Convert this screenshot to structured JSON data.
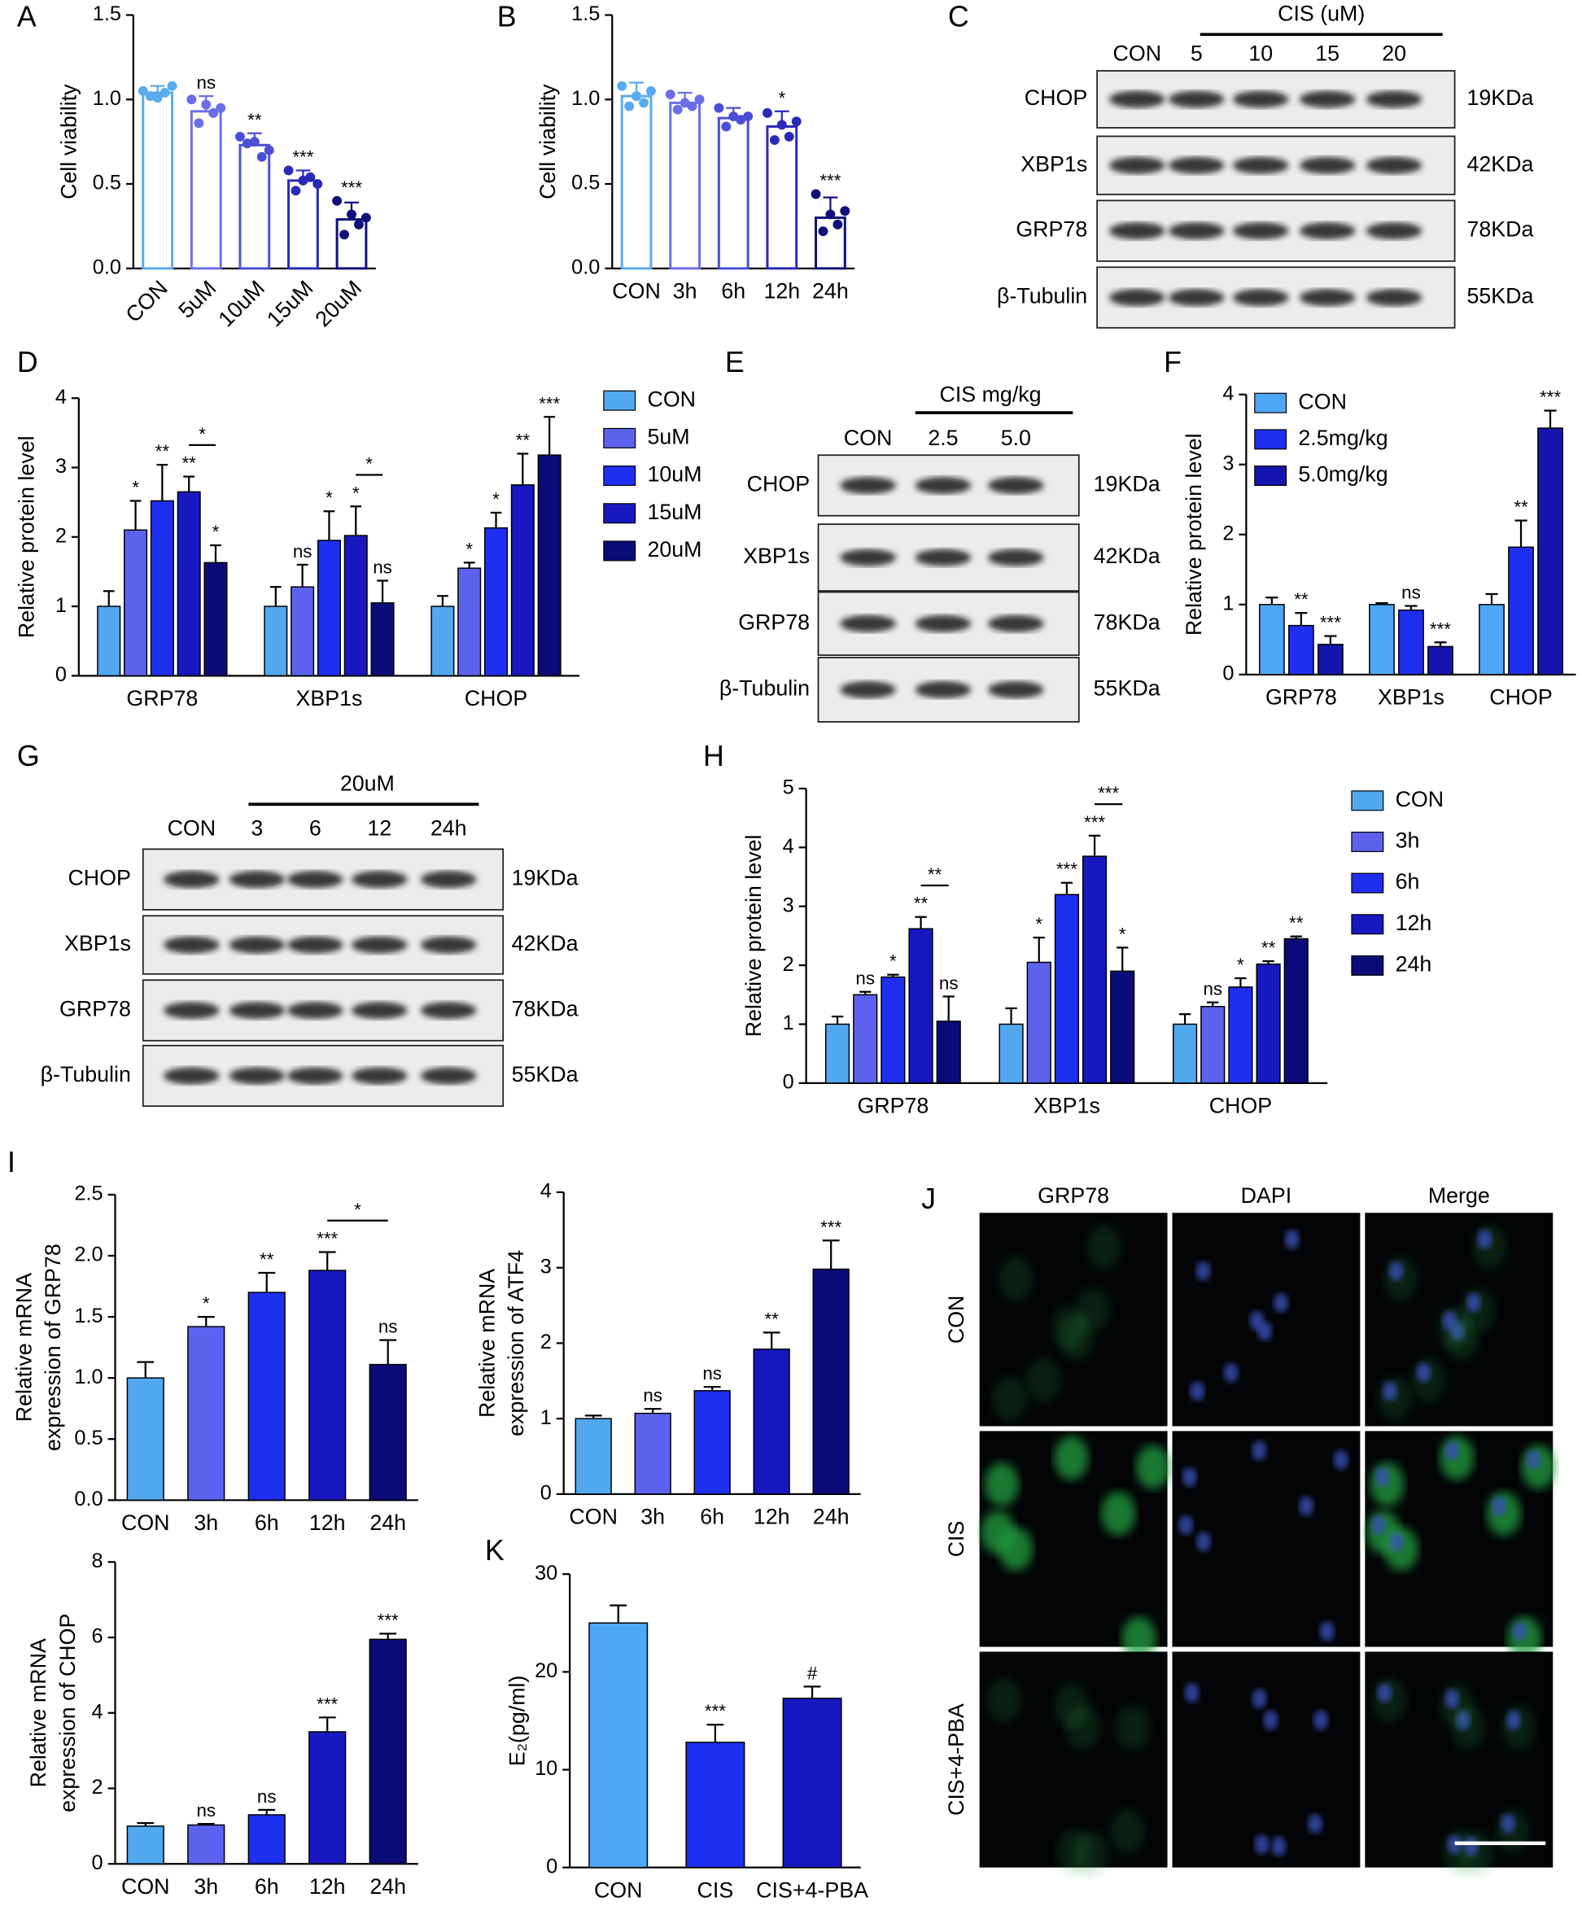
{
  "chart_data": [
    {
      "type": "bar",
      "panel": "A",
      "ylabel": "Cell viability",
      "hollow": true,
      "xtick_rotation": -45,
      "categories": [
        "CON",
        "5uM",
        "10uM",
        "15uM",
        "20uM"
      ],
      "values": [
        1.04,
        0.93,
        0.73,
        0.52,
        0.29
      ],
      "errors": [
        0.04,
        0.09,
        0.07,
        0.06,
        0.1
      ],
      "points": [
        [
          1.05,
          1.08,
          1.02,
          1.04,
          1.01
        ],
        [
          1.0,
          0.95,
          0.86,
          0.92,
          0.97
        ],
        [
          0.78,
          0.7,
          0.74,
          0.66,
          0.75
        ],
        [
          0.58,
          0.5,
          0.46,
          0.54,
          0.52
        ],
        [
          0.4,
          0.3,
          0.2,
          0.26,
          0.32
        ]
      ],
      "significance": [
        null,
        "ns",
        "**",
        "***",
        "***"
      ],
      "colors": [
        "#5aaaf0",
        "#6b6ee8",
        "#4b4fd8",
        "#2a2ab8",
        "#10107a"
      ],
      "ylim": [
        0,
        1.5
      ],
      "yticks": [
        {
          "value": 0,
          "label": "0.0"
        },
        0.5,
        {
          "value": 1,
          "label": "1.0"
        },
        1.5
      ]
    },
    {
      "type": "bar",
      "panel": "B",
      "ylabel": "Cell viability",
      "hollow": true,
      "categories": [
        "CON",
        "3h",
        "6h",
        "12h",
        "24h"
      ],
      "values": [
        1.02,
        0.98,
        0.89,
        0.84,
        0.3
      ],
      "errors": [
        0.08,
        0.06,
        0.06,
        0.09,
        0.12
      ],
      "points": [
        [
          1.08,
          1.05,
          0.96,
          0.98,
          1.02
        ],
        [
          1.03,
          1.0,
          0.94,
          0.96,
          0.98
        ],
        [
          0.95,
          0.9,
          0.84,
          0.88,
          0.9
        ],
        [
          0.92,
          0.87,
          0.76,
          0.78,
          0.85
        ],
        [
          0.44,
          0.34,
          0.22,
          0.26,
          0.32
        ]
      ],
      "significance": [
        null,
        null,
        null,
        "*",
        "***"
      ],
      "colors": [
        "#5aaaf0",
        "#6b6ee8",
        "#4b4fd8",
        "#2a2ab8",
        "#10107a"
      ],
      "ylim": [
        0,
        1.5
      ],
      "yticks": [
        {
          "value": 0,
          "label": "0.0"
        },
        0.5,
        {
          "value": 1,
          "label": "1.0"
        },
        1.5
      ]
    },
    {
      "type": "bar",
      "panel": "D",
      "ylabel": "Relative protein level",
      "legend": "right",
      "categories": [
        "GRP78",
        "XBP1s",
        "CHOP"
      ],
      "series": [
        {
          "name": "CON",
          "color": "#52a8ee",
          "values": [
            1.0,
            1.0,
            1.0
          ],
          "errors": [
            0.22,
            0.28,
            0.15
          ],
          "significance": [
            null,
            null,
            null
          ]
        },
        {
          "name": "5uM",
          "color": "#5c62ee",
          "values": [
            2.1,
            1.28,
            1.55
          ],
          "errors": [
            0.42,
            0.32,
            0.08
          ],
          "significance": [
            "*",
            "ns",
            "*"
          ]
        },
        {
          "name": "10uM",
          "color": "#1f2ff0",
          "values": [
            2.52,
            1.95,
            2.13
          ],
          "errors": [
            0.52,
            0.42,
            0.22
          ],
          "significance": [
            "**",
            "*",
            "*"
          ]
        },
        {
          "name": "15uM",
          "color": "#1818c0",
          "values": [
            2.65,
            2.02,
            2.75
          ],
          "errors": [
            0.22,
            0.42,
            0.45
          ],
          "significance": [
            "**",
            "*",
            "**"
          ]
        },
        {
          "name": "20uM",
          "color": "#0c0c78",
          "values": [
            1.63,
            1.05,
            3.18
          ],
          "errors": [
            0.25,
            0.32,
            0.55
          ],
          "significance": [
            "*",
            "ns",
            "***"
          ]
        }
      ],
      "comparisons": [
        {
          "category": 0,
          "bars": [
            3,
            4
          ],
          "label": "*"
        },
        {
          "category": 1,
          "bars": [
            3,
            4
          ],
          "label": "*"
        }
      ],
      "ylim": [
        0,
        4
      ],
      "yticks": [
        0,
        1,
        2,
        3,
        4
      ]
    },
    {
      "type": "bar",
      "panel": "F",
      "ylabel": "Relative protein level",
      "legend": "right",
      "categories": [
        "GRP78",
        "XBP1s",
        "CHOP"
      ],
      "series": [
        {
          "name": "CON",
          "color": "#4ea6f6",
          "values": [
            1.0,
            1.0,
            1.0
          ],
          "errors": [
            0.1,
            0.02,
            0.15
          ],
          "significance": [
            null,
            null,
            null
          ]
        },
        {
          "name": "2.5mg/kg",
          "color": "#1f2ff0",
          "values": [
            0.7,
            0.92,
            1.82
          ],
          "errors": [
            0.18,
            0.06,
            0.38
          ],
          "significance": [
            "**",
            "ns",
            "**"
          ]
        },
        {
          "name": "5.0mg/kg",
          "color": "#1515b0",
          "values": [
            0.43,
            0.4,
            3.52
          ],
          "errors": [
            0.12,
            0.06,
            0.25
          ],
          "significance": [
            "***",
            "***",
            "***"
          ]
        }
      ],
      "ylim": [
        0,
        4
      ],
      "yticks": [
        0,
        1,
        2,
        3,
        4
      ]
    },
    {
      "type": "bar",
      "panel": "H",
      "ylabel": "Relative protein level",
      "legend": "right",
      "categories": [
        "GRP78",
        "XBP1s",
        "CHOP"
      ],
      "series": [
        {
          "name": "CON",
          "color": "#52a8ee",
          "values": [
            1.0,
            1.0,
            1.0
          ],
          "errors": [
            0.13,
            0.27,
            0.17
          ],
          "significance": [
            null,
            null,
            null
          ]
        },
        {
          "name": "3h",
          "color": "#5c62ee",
          "values": [
            1.5,
            2.05,
            1.3
          ],
          "errors": [
            0.05,
            0.42,
            0.07
          ],
          "significance": [
            "ns",
            "*",
            "ns"
          ]
        },
        {
          "name": "6h",
          "color": "#1f2ff0",
          "values": [
            1.8,
            3.2,
            1.63
          ],
          "errors": [
            0.04,
            0.2,
            0.15
          ],
          "significance": [
            "*",
            "***",
            "*"
          ]
        },
        {
          "name": "12h",
          "color": "#1818c0",
          "values": [
            2.62,
            3.85,
            2.02
          ],
          "errors": [
            0.2,
            0.35,
            0.05
          ],
          "significance": [
            "**",
            "***",
            "**"
          ]
        },
        {
          "name": "24h",
          "color": "#0c0c78",
          "values": [
            1.05,
            1.9,
            2.45
          ],
          "errors": [
            0.42,
            0.4,
            0.04
          ],
          "significance": [
            "ns",
            "*",
            "**"
          ]
        }
      ],
      "comparisons": [
        {
          "category": 0,
          "bars": [
            3,
            4
          ],
          "label": "**"
        },
        {
          "category": 1,
          "bars": [
            3,
            4
          ],
          "label": "***"
        }
      ],
      "ylim": [
        0,
        5
      ],
      "yticks": [
        0,
        1,
        2,
        3,
        4,
        5
      ]
    },
    {
      "type": "bar",
      "panel": "I",
      "ylabel": [
        "Relative mRNA",
        "expression of GRP78"
      ],
      "categories": [
        "CON",
        "3h",
        "6h",
        "12h",
        "24h"
      ],
      "values": [
        1.0,
        1.42,
        1.7,
        1.88,
        1.11
      ],
      "errors": [
        0.13,
        0.08,
        0.16,
        0.15,
        0.2
      ],
      "significance": [
        null,
        "*",
        "**",
        "***",
        "ns"
      ],
      "colors": [
        "#52a8ee",
        "#5c62ee",
        "#1f2ff0",
        "#1818c0",
        "#0c0c78"
      ],
      "comparisons": [
        {
          "bars": [
            3,
            4
          ],
          "label": "*"
        }
      ],
      "ylim": [
        0,
        2.5
      ],
      "yticks": [
        {
          "value": 0,
          "label": "0.0"
        },
        0.5,
        {
          "value": 1,
          "label": "1.0"
        },
        1.5,
        {
          "value": 2,
          "label": "2.0"
        },
        2.5
      ]
    },
    {
      "type": "bar",
      "ylabel": [
        "Relative mRNA",
        "expression of ATF4"
      ],
      "categories": [
        "CON",
        "3h",
        "6h",
        "12h",
        "24h"
      ],
      "values": [
        1.0,
        1.07,
        1.37,
        1.92,
        2.98
      ],
      "errors": [
        0.04,
        0.06,
        0.05,
        0.22,
        0.38
      ],
      "significance": [
        null,
        "ns",
        "ns",
        "**",
        "***"
      ],
      "colors": [
        "#52a8ee",
        "#5c62ee",
        "#1f2ff0",
        "#1818c0",
        "#0c0c78"
      ],
      "ylim": [
        0,
        4
      ],
      "yticks": [
        0,
        1,
        2,
        3,
        4
      ]
    },
    {
      "type": "bar",
      "ylabel": [
        "Relative mRNA",
        "expression of CHOP"
      ],
      "categories": [
        "CON",
        "3h",
        "6h",
        "12h",
        "24h"
      ],
      "values": [
        1.0,
        1.03,
        1.3,
        3.5,
        5.95
      ],
      "errors": [
        0.08,
        0.03,
        0.13,
        0.38,
        0.15
      ],
      "significance": [
        null,
        "ns",
        "ns",
        "***",
        "***"
      ],
      "colors": [
        "#52a8ee",
        "#5c62ee",
        "#1f2ff0",
        "#1818c0",
        "#0c0c78"
      ],
      "ylim": [
        0,
        8
      ],
      "yticks": [
        0,
        2,
        4,
        6,
        8
      ]
    },
    {
      "type": "bar",
      "panel": "K",
      "ylabel": "E₂(pg/ml)",
      "categories": [
        "CON",
        "CIS",
        "CIS+4-PBA"
      ],
      "values": [
        25,
        12.8,
        17.3
      ],
      "errors": [
        1.8,
        1.8,
        1.2
      ],
      "significance": [
        null,
        "***",
        "#"
      ],
      "colors": [
        "#4ea6f6",
        "#1f2ff0",
        "#1818c0"
      ],
      "ylim": [
        0,
        30
      ],
      "yticks": [
        0,
        10,
        20,
        30
      ]
    }
  ],
  "blots": [
    {
      "panel": "C",
      "header": "CIS  (uM)",
      "lanes": [
        "CON",
        "5",
        "10",
        "15",
        "20"
      ],
      "rows": [
        {
          "protein": "CHOP",
          "size": "19KDa"
        },
        {
          "protein": "XBP1s",
          "size": "42KDa"
        },
        {
          "protein": "GRP78",
          "size": "78KDa"
        },
        {
          "protein": "β-Tubulin",
          "size": "55KDa"
        }
      ]
    },
    {
      "panel": "E",
      "header": "CIS  mg/kg",
      "lanes": [
        "CON",
        "2.5",
        "5.0"
      ],
      "rows": [
        {
          "protein": "CHOP",
          "size": "19KDa"
        },
        {
          "protein": "XBP1s",
          "size": "42KDa"
        },
        {
          "protein": "GRP78",
          "size": "78KDa"
        },
        {
          "protein": "β-Tubulin",
          "size": "55KDa"
        }
      ]
    },
    {
      "panel": "G",
      "header": "20uM",
      "lanes": [
        "CON",
        "3",
        "6",
        "12",
        "24h"
      ],
      "rows": [
        {
          "protein": "CHOP",
          "size": "19KDa"
        },
        {
          "protein": "XBP1s",
          "size": "42KDa"
        },
        {
          "protein": "GRP78",
          "size": "78KDa"
        },
        {
          "protein": "β-Tubulin",
          "size": "55KDa"
        }
      ]
    }
  ],
  "fluorescence": {
    "panel": "J",
    "columns": [
      "GRP78",
      "DAPI",
      "Merge"
    ],
    "rows": [
      "CON",
      "CIS",
      "CIS+4-PBA"
    ]
  }
}
